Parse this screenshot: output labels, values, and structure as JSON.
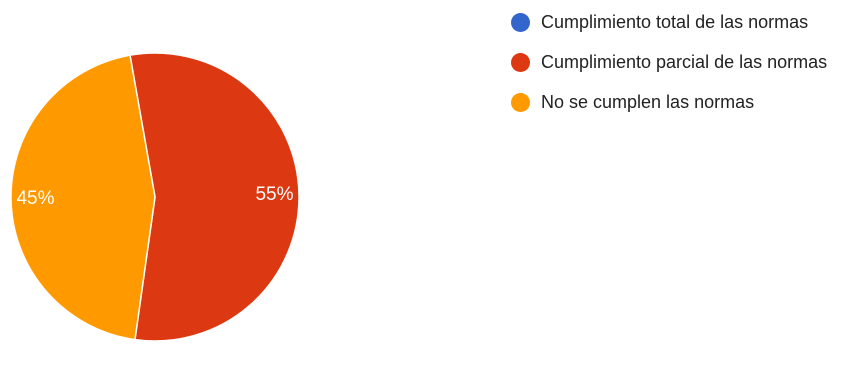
{
  "chart_data": {
    "type": "pie",
    "title": "",
    "categories": [
      "Cumplimiento total de las normas",
      "Cumplimiento parcial de las normas",
      "No se cumplen las normas"
    ],
    "values": [
      0,
      55,
      45
    ],
    "value_labels": [
      "0%",
      "55%",
      "45%"
    ],
    "colors": [
      "#3366cc",
      "#dc3912",
      "#ff9900"
    ],
    "legend_position": "right"
  },
  "legend": {
    "items": [
      {
        "label": "Cumplimiento total de las normas",
        "color": "#3366cc"
      },
      {
        "label": "Cumplimiento parcial de las normas",
        "color": "#dc3912"
      },
      {
        "label": "No se cumplen las normas",
        "color": "#ff9900"
      }
    ]
  }
}
